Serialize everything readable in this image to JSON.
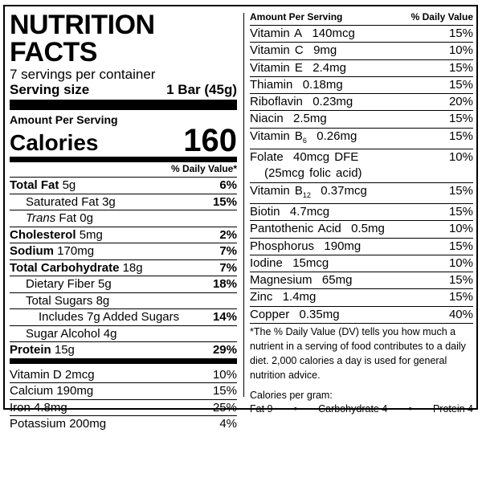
{
  "left": {
    "title": "NUTRITION FACTS",
    "servings": "7 servings per container",
    "serving_size_label": "Serving size",
    "serving_size_value": "1 Bar (45g)",
    "amount_per_serving": "Amount Per Serving",
    "calories_label": "Calories",
    "calories_value": "160",
    "dv_header": "% Daily Value*",
    "nutrients": [
      {
        "name": "Total Fat",
        "amount": "5g",
        "dv": "6%"
      },
      {
        "name": "Saturated Fat",
        "amount": "3g",
        "dv": "15%"
      },
      {
        "name": "Trans",
        "amount": "Fat 0g",
        "dv": ""
      },
      {
        "name": "Cholesterol",
        "amount": "5mg",
        "dv": "2%"
      },
      {
        "name": "Sodium",
        "amount": "170mg",
        "dv": "7%"
      },
      {
        "name": "Total Carbohydrate",
        "amount": "18g",
        "dv": "7%"
      },
      {
        "name": "Dietary Fiber",
        "amount": "5g",
        "dv": "18%"
      },
      {
        "name": "Total Sugars",
        "amount": "8g",
        "dv": ""
      },
      {
        "name": "Includes 7g Added Sugars",
        "amount": "",
        "dv": "14%"
      },
      {
        "name": "Sugar Alcohol",
        "amount": "4g",
        "dv": ""
      },
      {
        "name": "Protein",
        "amount": "15g",
        "dv": "29%"
      }
    ],
    "vitamins": [
      {
        "name": "Vitamin D 2mcg",
        "dv": "10%"
      },
      {
        "name": "Calcium 190mg",
        "dv": "15%"
      },
      {
        "name": "Iron 4.8mg",
        "dv": "25%"
      },
      {
        "name": "Potassium 200mg",
        "dv": "4%"
      }
    ]
  },
  "right": {
    "header_left": "Amount Per Serving",
    "header_right": "% Daily Value",
    "rows": [
      {
        "name": "Vitamin A",
        "amount": "140mcg",
        "dv": "15%"
      },
      {
        "name": "Vitamin C",
        "amount": "9mg",
        "dv": "10%"
      },
      {
        "name": "Vitamin E",
        "amount": "2.4mg",
        "dv": "15%"
      },
      {
        "name": "Thiamin",
        "amount": "0.18mg",
        "dv": "15%"
      },
      {
        "name": "Riboflavin",
        "amount": "0.23mg",
        "dv": "20%"
      },
      {
        "name": "Niacin",
        "amount": "2.5mg",
        "dv": "15%"
      },
      {
        "name": "Vitamin B",
        "sub": "6",
        "amount": "0.26mg",
        "dv": "15%"
      },
      {
        "name": "Folate",
        "amount": "40mcg DFE",
        "line2": "(25mcg folic acid)",
        "dv": "10%"
      },
      {
        "name": "Vitamin B",
        "sub": "12",
        "amount": "0.37mcg",
        "dv": "15%"
      },
      {
        "name": "Biotin",
        "amount": "4.7mcg",
        "dv": "15%"
      },
      {
        "name": "Pantothenic Acid",
        "amount": "0.5mg",
        "dv": "10%"
      },
      {
        "name": "Phosphorus",
        "amount": "190mg",
        "dv": "15%"
      },
      {
        "name": "Iodine",
        "amount": "15mcg",
        "dv": "10%"
      },
      {
        "name": "Magnesium",
        "amount": "65mg",
        "dv": "15%"
      },
      {
        "name": "Zinc",
        "amount": "1.4mg",
        "dv": "15%"
      },
      {
        "name": "Copper",
        "amount": "0.35mg",
        "dv": "40%"
      }
    ],
    "footnote": "*The % Daily Value (DV) tells you how much a nutrient in a serving of food contributes to a daily diet. 2,000 calories a day is used for general nutrition advice.",
    "cpg_title": "Calories per gram:",
    "cpg_fat": "Fat 9",
    "cpg_carb": "Carbohydrate 4",
    "cpg_protein": "Protein 4",
    "bullet": "•"
  }
}
